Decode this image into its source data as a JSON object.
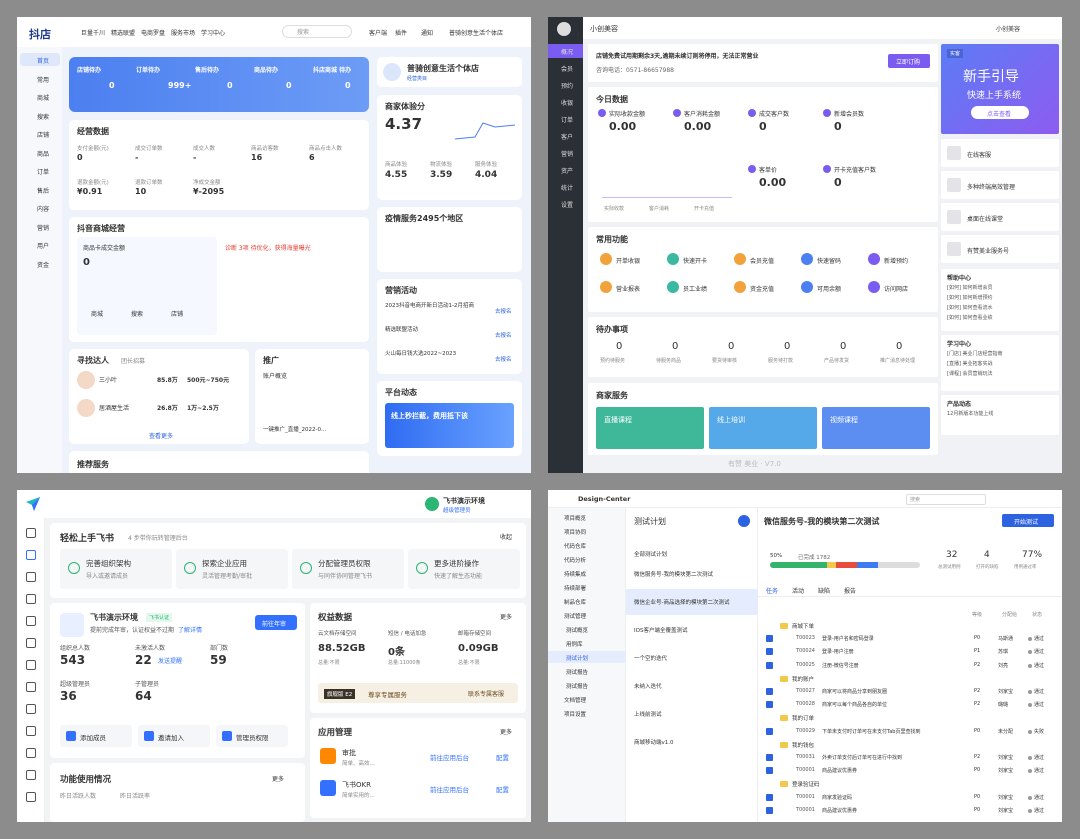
{
  "p1": {
    "logo": "抖店",
    "nav": [
      "巨量千川",
      "精选联盟",
      "电商罗盘",
      "服务市场",
      "学习中心"
    ],
    "search": "搜索",
    "top": [
      "客户端",
      "插件",
      "通知"
    ],
    "account": "普骑创意生活个体店",
    "side": [
      "首页",
      "常用",
      "商城",
      "搜索",
      "店铺",
      "商品",
      "订单",
      "售后",
      "内容",
      "营销",
      "用户",
      "资金"
    ],
    "todo": [
      [
        "店铺待办",
        "0"
      ],
      [
        "订单待办",
        "999+"
      ],
      [
        "售后待办",
        "0"
      ],
      [
        "商品待办",
        "0"
      ],
      [
        "抖店商城 待办",
        "0"
      ]
    ],
    "shop": {
      "name": "普骑创意生活个体店",
      "tag": "经营类目"
    },
    "biz": {
      "title": "经营数据",
      "metrics": [
        [
          "支付金额(元)",
          "0"
        ],
        [
          "成交订单数",
          "-"
        ],
        [
          "成交人数",
          "-"
        ],
        [
          "商品访客数",
          "16"
        ],
        [
          "商品点击人数",
          "6"
        ],
        [
          "退款金额(元)",
          "¥0.91"
        ],
        [
          "退款订单数",
          "10"
        ],
        [
          "净成交金额",
          "¥-2095"
        ]
      ]
    },
    "score": {
      "title": "商家体验分",
      "value": "4.37",
      "subs": [
        [
          "商品体验",
          "4.55"
        ],
        [
          "物流体验",
          "3.59"
        ],
        [
          "服务体验",
          "4.04"
        ]
      ]
    },
    "mall": {
      "title": "抖音商城经营",
      "card": "商品卡成交金额",
      "value": "0",
      "alert": "诊断 3项 待优化，获得海量曝光",
      "links": [
        "商城",
        "搜索",
        "店铺"
      ]
    },
    "epidemic": "疫情服务2495个地区",
    "talent": {
      "title": "寻找达人",
      "sub": "团长招募",
      "rows": [
        [
          "三小叶",
          "85.8万",
          "500元~750元"
        ],
        [
          "居酒屋生活",
          "26.8万",
          "1万~2.5万"
        ]
      ],
      "more": "查看更多"
    },
    "promo": {
      "title": "推广",
      "sub": "账户概览",
      "item": "一键推广_直播_2022-0..."
    },
    "marketing": {
      "title": "营销活动",
      "items": [
        "2023抖音电商开新日活动1-2月招商",
        "精选联盟活动",
        "火山每日钱大选2022~2023"
      ],
      "go": "去报名"
    },
    "platform": {
      "title": "平台动态",
      "banner": "线上秒拦截，费用抵下该"
    },
    "recommend": "推荐服务"
  },
  "p2": {
    "brand": "小创美容",
    "user": "小创美容",
    "side": [
      "概况",
      "会员",
      "预约",
      "收银",
      "订单",
      "客户",
      "营销",
      "资产",
      "统计",
      "设置"
    ],
    "notice": "店铺免费试用期剩余3天,逾期未续订则将停用，无法正常营业",
    "phone": "咨询电话：0571-86657988",
    "order": "立即订购",
    "today": {
      "title": "今日数据",
      "items": [
        [
          "实际收款金额",
          "0.00"
        ],
        [
          "客户消耗金额",
          "0.00"
        ],
        [
          "成交客户数",
          "0"
        ],
        [
          "新增会员数",
          "0"
        ],
        [
          "客单价",
          "0.00"
        ],
        [
          "开卡充值客户数",
          "0"
        ]
      ],
      "chart": [
        "实际收款",
        "客户消耗",
        "开卡充值"
      ]
    },
    "guide": {
      "tag": "实客",
      "title": "新手引导",
      "sub": "快速上手系统",
      "btn": "点击查看"
    },
    "funcs": {
      "title": "常用功能",
      "items": [
        "开单收银",
        "快速开卡",
        "会员充值",
        "快速留码",
        "新增预约",
        "营业报表",
        "员工业绩",
        "资金充值",
        "可用余额",
        "访问网店"
      ]
    },
    "todo": {
      "title": "待办事项",
      "items": [
        [
          "0",
          "预约待服务"
        ],
        [
          "0",
          "待服务商品"
        ],
        [
          "0",
          "要货待审核"
        ],
        [
          "0",
          "服务待打款"
        ],
        [
          "0",
          "产品待发货"
        ],
        [
          "0",
          "推广消息待处理"
        ]
      ]
    },
    "service": {
      "title": "商家服务",
      "items": [
        "直播课程",
        "线上培训",
        "视频课程"
      ]
    },
    "right": [
      "在线客服",
      "多种终端高效管理",
      "桌面在线课堂",
      "有赞美业服务号"
    ],
    "help": {
      "title": "帮助中心",
      "items": [
        "[如何] 如何新增会员",
        "[如何] 如何新增预约",
        "[如何] 如何查看流水",
        "[如何] 如何查看业绩"
      ]
    },
    "learn": {
      "title": "学习中心",
      "items": [
        "[门店] 美业门店经营指南",
        "[直播] 美业拓客实战",
        "[课程] 会员营销玩法"
      ]
    },
    "news": {
      "title": "产品动态",
      "items": [
        "12月新版本功能上线"
      ]
    },
    "foot": "有赞 美业 · V7.0"
  },
  "p3": {
    "org": "飞书演示环境",
    "role": "超级管理员",
    "guide": {
      "title": "轻松上手飞书",
      "sub": "4 步带你玩转管理后台",
      "fold": "收起",
      "steps": [
        [
          "完善组织架构",
          "导入或邀请成员"
        ],
        [
          "探索企业应用",
          "灵活管理考勤/审批"
        ],
        [
          "分配管理员权限",
          "与同伴协同管理飞书"
        ],
        [
          "更多进阶操作",
          "快速了解生态功能"
        ]
      ]
    },
    "card": {
      "name": "飞书演示环境",
      "badge": "飞书认证",
      "desc": "提前完成年审，认证权益不过期",
      "link": "了解详情",
      "btn": "前往年审",
      "stats": [
        [
          "组织总人数",
          "543"
        ],
        [
          "未激活人数",
          "22"
        ],
        [
          "部门数",
          "59"
        ],
        [
          "超级管理员",
          "36"
        ],
        [
          "子管理员",
          "64"
        ]
      ],
      "remind": "发送提醒",
      "actions": [
        "添加成员",
        "邀请加入",
        "管理员权限"
      ]
    },
    "rights": {
      "title": "权益数据",
      "more": "更多",
      "items": [
        [
          "云文档存储空间",
          "88.52GB",
          "总量:不限"
        ],
        [
          "短信 / 电话加急",
          "0条",
          "总量:11000条"
        ],
        [
          "邮箱存储空间",
          "0.09GB",
          "总量:不限"
        ]
      ],
      "plan": "旗舰版 E2",
      "planText": "尊享专属服务",
      "contact": "联系专属客服"
    },
    "apps": {
      "title": "应用管理",
      "more": "更多",
      "items": [
        [
          "审批",
          "简单、高效..."
        ],
        [
          "飞书OKR",
          "简单实用的..."
        ]
      ],
      "go": "前往应用后台",
      "config": "配置"
    },
    "usage": {
      "title": "功能使用情况",
      "more": "更多",
      "items": [
        "昨日活跃人数",
        "昨日活跃率"
      ]
    }
  },
  "p4": {
    "project": "Design-Center",
    "search": "搜索",
    "side": [
      "项目概览",
      "项目协同",
      "代码仓库",
      "代码分析",
      "持续集成",
      "持续部署",
      "制品仓库",
      "测试管理",
      "测试概览",
      "用例库",
      "测试计划",
      "测试报告",
      "测试报告",
      "文档管理",
      "项目设置"
    ],
    "list": {
      "title": "测试计划",
      "filter": "全部测试计划",
      "items": [
        "微信服务号-我的模块第二次测试",
        "微信企业号-商品选择的模块第二次测试",
        "IOS客户端全覆盖测试",
        "一个空的迭代",
        "未纳入迭代",
        "上线前测试",
        "商城移动端v1.0"
      ]
    },
    "main": {
      "title": "微信服务号-我的模块第二次测试",
      "start": "开始测试",
      "progress": "50%",
      "done": "已完成 1782",
      "stats": [
        [
          "32",
          "总测试用例"
        ],
        [
          "4",
          "打开的缺陷"
        ],
        [
          "77%",
          "用例通过率"
        ]
      ],
      "tabs": [
        "任务",
        "活动",
        "缺陷",
        "报告"
      ],
      "head": [
        "等级",
        "分配给",
        "状态"
      ],
      "rows": [
        [
          "folder",
          "商城下单"
        ],
        [
          "T00023",
          "登录-用户名和密码登录",
          "P0",
          "马斯通",
          "通过"
        ],
        [
          "T00024",
          "登录-用户注册",
          "P1",
          "苏琪",
          "通过"
        ],
        [
          "T00025",
          "注册-微信号注册",
          "P2",
          "刘亮",
          "通过"
        ],
        [
          "folder",
          "我的账户"
        ],
        [
          "T00027",
          "商家可以将商品分享到朋友圈",
          "P2",
          "刘家宝",
          "通过"
        ],
        [
          "T00028",
          "商家可以每个商品各自的单位",
          "P2",
          "璐璐",
          "通过"
        ],
        [
          "folder",
          "我的订单"
        ],
        [
          "T00029",
          "下单未支付时订单可在未支付Tab页里查找到",
          "P0",
          "未分配",
          "失败"
        ],
        [
          "folder",
          "我的钱包"
        ],
        [
          "T00031",
          "外卖订单支付后订单可在进行中找到",
          "P2",
          "刘家宝",
          "通过"
        ],
        [
          "T00001",
          "商品建议优惠券",
          "P0",
          "刘家宝",
          "通过"
        ],
        [
          "folder",
          "登录验证码"
        ],
        [
          "T00001",
          "商家发验证码",
          "P0",
          "刘家宝",
          "通过"
        ],
        [
          "T00001",
          "商品建议优惠券",
          "P0",
          "刘家宝",
          "通过"
        ]
      ]
    }
  }
}
